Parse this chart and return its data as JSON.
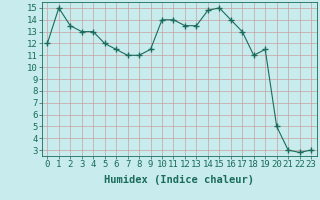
{
  "x": [
    0,
    1,
    2,
    3,
    4,
    5,
    6,
    7,
    8,
    9,
    10,
    11,
    12,
    13,
    14,
    15,
    16,
    17,
    18,
    19,
    20,
    21,
    22,
    23
  ],
  "y": [
    12,
    15,
    13.5,
    13,
    13,
    12,
    11.5,
    11,
    11,
    11.5,
    14,
    14,
    13.5,
    13.5,
    14.8,
    15,
    14,
    13,
    11,
    11.5,
    5,
    3,
    2.8,
    3
  ],
  "line_color": "#1a6b5a",
  "marker": "+",
  "marker_size": 4,
  "bg_color": "#c8eced",
  "grid_color": "#b8d8d8",
  "xlabel": "Humidex (Indice chaleur)",
  "ylim": [
    2.5,
    15.5
  ],
  "xlim": [
    -0.5,
    23.5
  ],
  "yticks": [
    3,
    4,
    5,
    6,
    7,
    8,
    9,
    10,
    11,
    12,
    13,
    14,
    15
  ],
  "xticks": [
    0,
    1,
    2,
    3,
    4,
    5,
    6,
    7,
    8,
    9,
    10,
    11,
    12,
    13,
    14,
    15,
    16,
    17,
    18,
    19,
    20,
    21,
    22,
    23
  ],
  "font_color": "#1a6b5a",
  "font_size": 6.5,
  "xlabel_font_size": 7.5
}
